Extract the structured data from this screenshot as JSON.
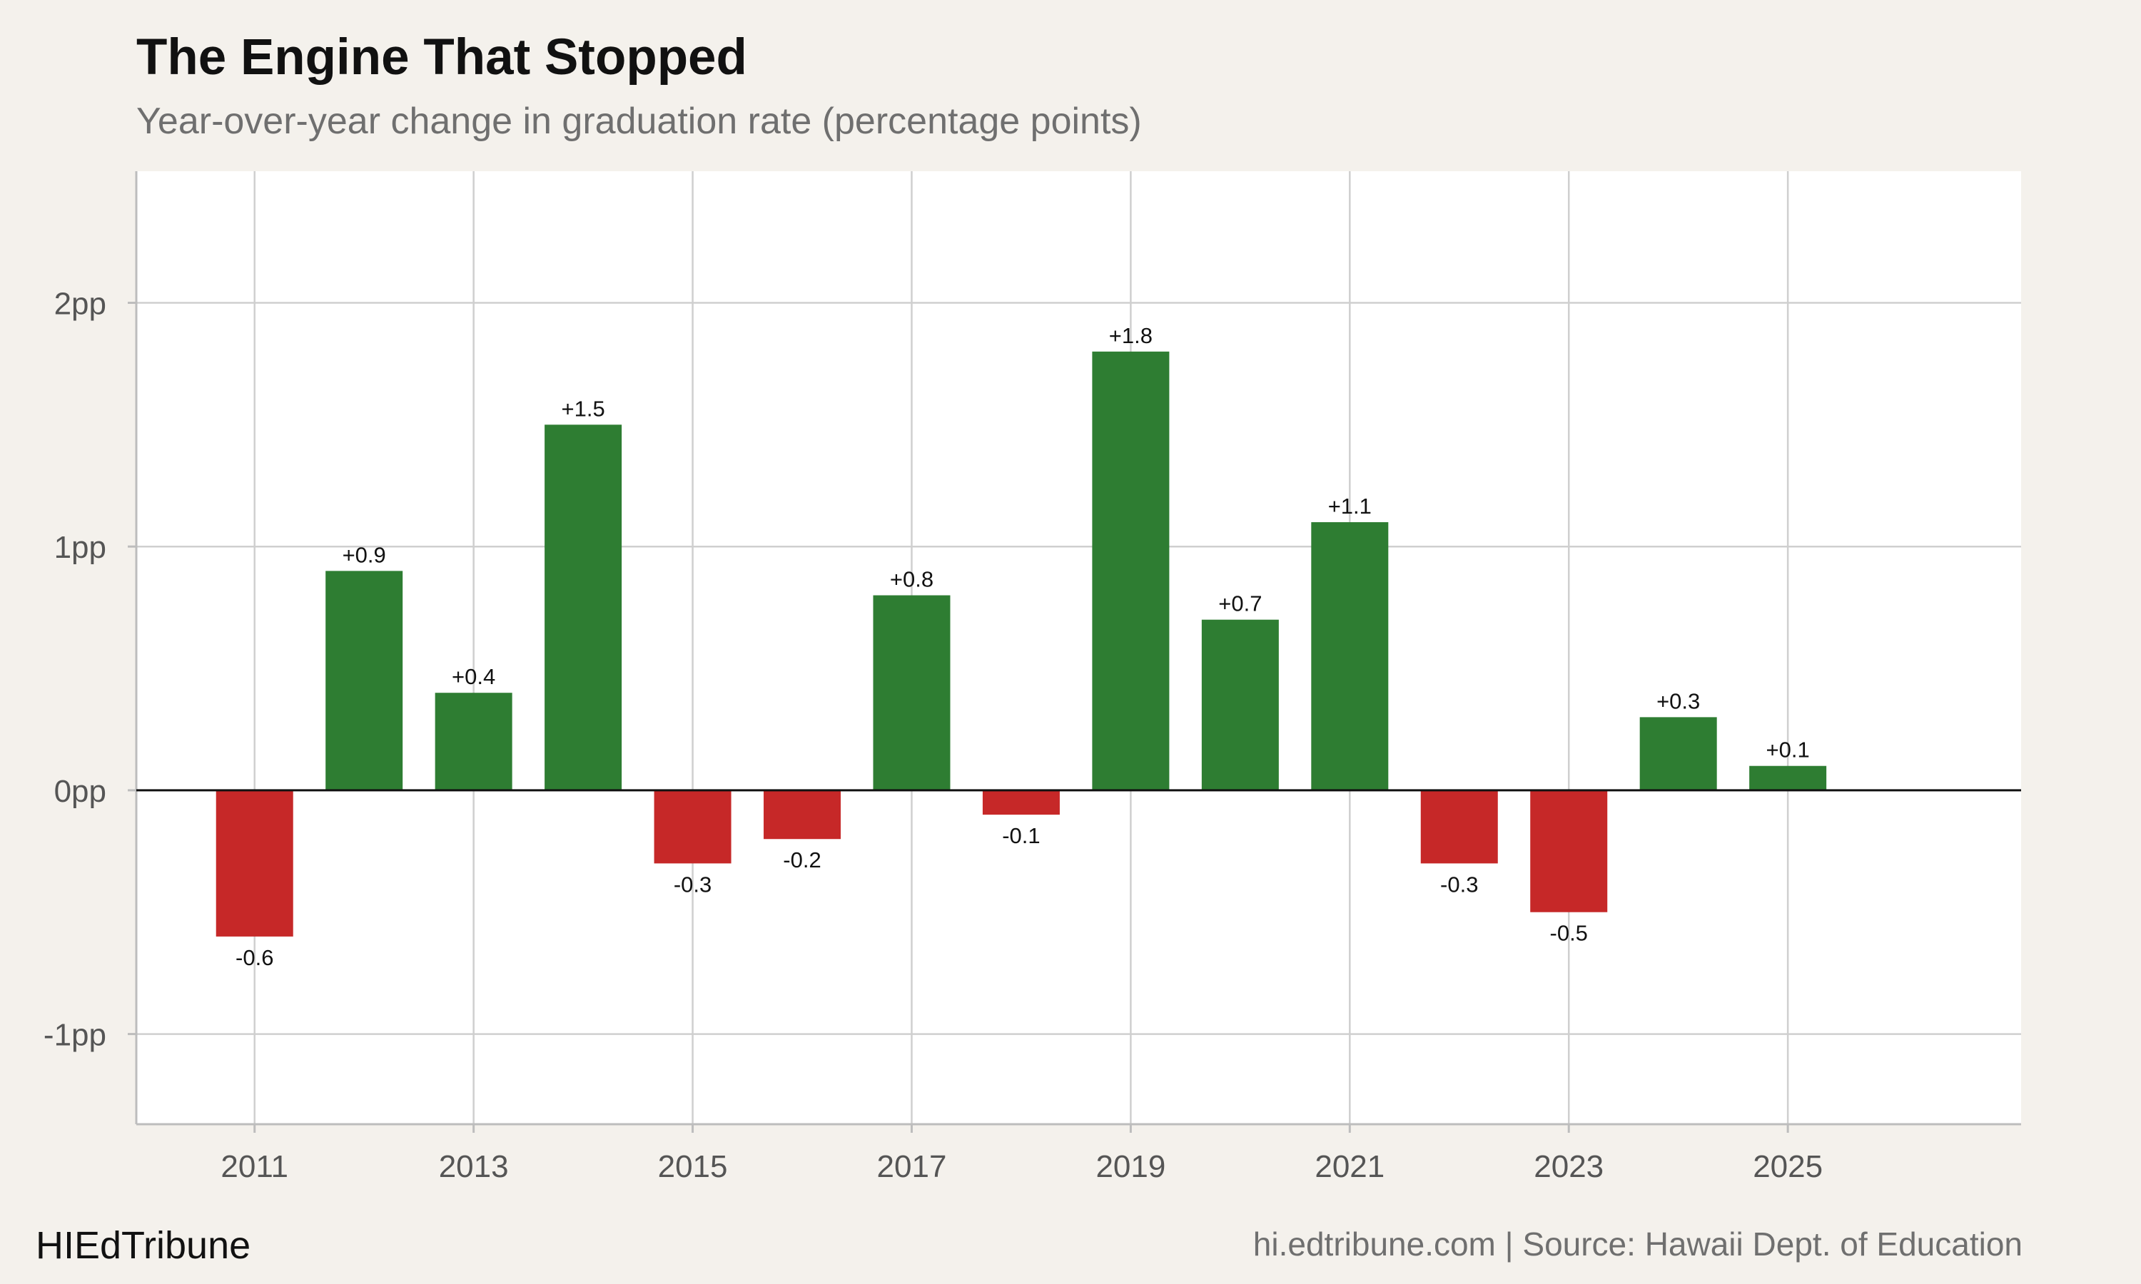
{
  "header": {
    "title": "The Engine That Stopped",
    "subtitle": "Year-over-year change in graduation rate (percentage points)"
  },
  "footer": {
    "brand": "HIEdTribune",
    "source": "hi.edtribune.com | Source: Hawaii Dept. of Education"
  },
  "colors": {
    "positive": "#2e7d32",
    "negative": "#c62828",
    "background": "#f4f1ec",
    "panel": "#ffffff",
    "grid": "#cfcfcf",
    "zero_line": "#111111"
  },
  "chart_data": {
    "type": "bar",
    "title": "The Engine That Stopped",
    "subtitle": "Year-over-year change in graduation rate (percentage points)",
    "xlabel": "",
    "ylabel": "",
    "categories": [
      2011,
      2012,
      2013,
      2014,
      2015,
      2016,
      2017,
      2018,
      2019,
      2020,
      2021,
      2022,
      2023,
      2024,
      2025
    ],
    "values": [
      -0.6,
      0.9,
      0.4,
      1.5,
      -0.3,
      -0.2,
      0.8,
      -0.1,
      1.8,
      0.7,
      1.1,
      -0.3,
      -0.5,
      0.3,
      0.1
    ],
    "data_labels": [
      "-0.6",
      "+0.9",
      "+0.4",
      "+1.5",
      "-0.3",
      "-0.2",
      "+0.8",
      "-0.1",
      "+1.8",
      "+0.7",
      "+1.1",
      "-0.3",
      "-0.5",
      "+0.3",
      "+0.1"
    ],
    "x_ticks": [
      "2011",
      "2013",
      "2015",
      "2017",
      "2019",
      "2021",
      "2023",
      "2025"
    ],
    "y_ticks": [
      -1,
      0,
      1,
      2
    ],
    "y_tick_labels": [
      "-1pp",
      "0pp",
      "1pp",
      "2pp"
    ],
    "xlim": [
      2009.92,
      2027.13
    ],
    "ylim": [
      -1.37,
      2.54
    ],
    "grid": true,
    "legend": "none"
  }
}
